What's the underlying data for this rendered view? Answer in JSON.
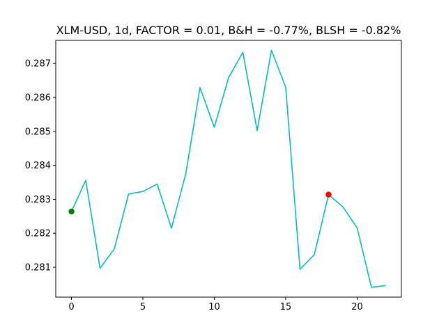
{
  "chart_data": {
    "type": "line",
    "title": "XLM-USD, 1d, FACTOR = 0.01, B&H = -0.77%, BLSH = -0.82%",
    "xlabel": "",
    "ylabel": "",
    "x": [
      0,
      1,
      2,
      3,
      4,
      5,
      6,
      7,
      8,
      9,
      10,
      11,
      12,
      13,
      14,
      15,
      16,
      17,
      18,
      19,
      20,
      21,
      22
    ],
    "series": [
      {
        "values": [
          0.28264,
          0.28356,
          0.28097,
          0.28154,
          0.28316,
          0.28323,
          0.28345,
          0.28215,
          0.28375,
          0.28629,
          0.28512,
          0.28658,
          0.28733,
          0.28502,
          0.28739,
          0.2863,
          0.28094,
          0.28137,
          0.28314,
          0.28278,
          0.28216,
          0.28041,
          0.28046
        ],
        "color": "#00bfbf"
      }
    ],
    "markers": [
      {
        "x": 0,
        "y": 0.28264,
        "color": "#008000"
      },
      {
        "x": 18,
        "y": 0.28314,
        "color": "#ff0000"
      }
    ],
    "xlim": [
      -1.1,
      23.1
    ],
    "ylim": [
      0.28012,
      0.28768
    ],
    "xticks": [
      0,
      5,
      10,
      15,
      20
    ],
    "yticks": [
      0.281,
      0.282,
      0.283,
      0.284,
      0.285,
      0.286,
      0.287
    ],
    "grid": false,
    "legend": "none"
  }
}
